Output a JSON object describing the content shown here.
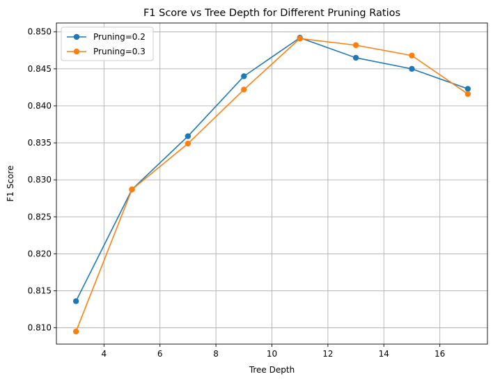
{
  "chart_data": {
    "type": "line",
    "title": "F1 Score vs Tree Depth for Different Pruning Ratios",
    "xlabel": "Tree Depth",
    "ylabel": "F1 Score",
    "x": [
      3,
      5,
      7,
      9,
      11,
      13,
      15,
      17
    ],
    "xlim": [
      2.3,
      17.7
    ],
    "ylim": [
      0.8078,
      0.8512
    ],
    "xticks": [
      4,
      6,
      8,
      10,
      12,
      14,
      16
    ],
    "yticks": [
      0.81,
      0.815,
      0.82,
      0.825,
      0.83,
      0.835,
      0.84,
      0.845,
      0.85
    ],
    "xtick_labels": [
      "4",
      "6",
      "8",
      "10",
      "12",
      "14",
      "16"
    ],
    "ytick_labels": [
      "0.810",
      "0.815",
      "0.820",
      "0.825",
      "0.830",
      "0.835",
      "0.840",
      "0.845",
      "0.850"
    ],
    "grid": true,
    "legend_position": "top-left",
    "series": [
      {
        "name": "Pruning=0.2",
        "color": "#1f77b4",
        "marker": "circle",
        "values": [
          0.8136,
          0.8287,
          0.8359,
          0.844,
          0.8492,
          0.8465,
          0.845,
          0.8423
        ]
      },
      {
        "name": "Pruning=0.3",
        "color": "#ff7f0e",
        "marker": "circle",
        "values": [
          0.8095,
          0.8287,
          0.8349,
          0.8422,
          0.8491,
          0.8482,
          0.8468,
          0.8416
        ]
      }
    ]
  }
}
